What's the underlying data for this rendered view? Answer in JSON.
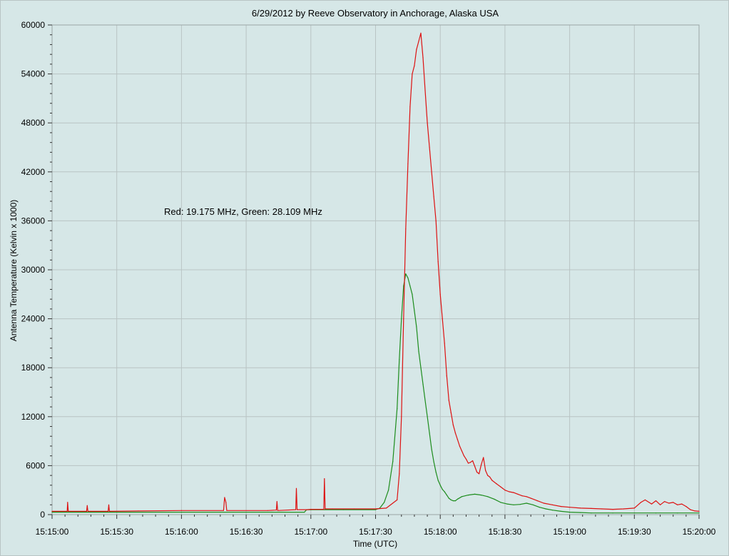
{
  "chart_data": {
    "type": "line",
    "title": "6/29/2012  by  Reeve Observatory  in  Anchorage, Alaska  USA",
    "xlabel": "Time (UTC)",
    "ylabel": "Antenna Temperature (Kelvin x 1000)",
    "annotation": "Red: 19.175 MHz, Green: 28.109 MHz",
    "xlim": [
      0,
      300
    ],
    "ylim": [
      0,
      60000
    ],
    "x_ticks": [
      {
        "t": 0,
        "label": "15:15:00"
      },
      {
        "t": 30,
        "label": "15:15:30"
      },
      {
        "t": 60,
        "label": "15:16:00"
      },
      {
        "t": 90,
        "label": "15:16:30"
      },
      {
        "t": 120,
        "label": "15:17:00"
      },
      {
        "t": 150,
        "label": "15:17:30"
      },
      {
        "t": 180,
        "label": "15:18:00"
      },
      {
        "t": 210,
        "label": "15:18:30"
      },
      {
        "t": 240,
        "label": "15:19:00"
      },
      {
        "t": 270,
        "label": "15:19:30"
      },
      {
        "t": 300,
        "label": "15:20:00"
      }
    ],
    "y_ticks": [
      0,
      6000,
      12000,
      18000,
      24000,
      30000,
      36000,
      42000,
      48000,
      54000,
      60000
    ],
    "grid": true,
    "colors": {
      "red": "#dd1111",
      "green": "#1c8c1c",
      "grid": "#b9c4c4",
      "plot_bg": "#d6e7e7"
    },
    "series": [
      {
        "name": "Red",
        "frequency": "19.175 MHz",
        "color": "#dd1111",
        "x": [
          0,
          7,
          7.2,
          7.5,
          16,
          16.3,
          16.6,
          26,
          26.3,
          26.6,
          40,
          60,
          79.5,
          80,
          80.6,
          81,
          100,
          104,
          104.3,
          104.6,
          113,
          113.3,
          113.6,
          118,
          120,
          126,
          126.3,
          126.6,
          130,
          140,
          150,
          155,
          160,
          161,
          162,
          163,
          164,
          165,
          166,
          167,
          168,
          169,
          170,
          171,
          172,
          173,
          174,
          175,
          176,
          177,
          178,
          179,
          180,
          181,
          182,
          183,
          184,
          185,
          186,
          187,
          188,
          189,
          190,
          191,
          192,
          193,
          194,
          195,
          196,
          197,
          198,
          199,
          200,
          201,
          202,
          203,
          204,
          205,
          206,
          207,
          208,
          209,
          210,
          212,
          214,
          216,
          218,
          220,
          222,
          225,
          228,
          232,
          236,
          240,
          245,
          250,
          255,
          260,
          265,
          270,
          273,
          275,
          278,
          280,
          282,
          284,
          286,
          288,
          290,
          292,
          294,
          296,
          298,
          300
        ],
        "y": [
          400,
          400,
          1500,
          400,
          400,
          1100,
          400,
          400,
          1200,
          400,
          450,
          500,
          500,
          2100,
          1500,
          500,
          500,
          550,
          1600,
          500,
          600,
          3200,
          600,
          600,
          650,
          650,
          4400,
          700,
          700,
          700,
          700,
          800,
          1800,
          5000,
          12000,
          24000,
          35000,
          43000,
          50000,
          54000,
          55000,
          57000,
          58000,
          59000,
          56000,
          52000,
          48000,
          45000,
          42000,
          39000,
          36000,
          31000,
          27000,
          24000,
          21000,
          17000,
          14000,
          12500,
          11000,
          10000,
          9200,
          8400,
          7800,
          7200,
          6800,
          6300,
          6400,
          6600,
          5900,
          5200,
          5000,
          6100,
          7000,
          5400,
          4800,
          4600,
          4200,
          4000,
          3800,
          3600,
          3400,
          3200,
          3000,
          2800,
          2700,
          2500,
          2300,
          2200,
          2000,
          1700,
          1400,
          1200,
          1000,
          900,
          800,
          750,
          700,
          650,
          700,
          800,
          1500,
          1800,
          1300,
          1700,
          1200,
          1600,
          1400,
          1500,
          1200,
          1300,
          1000,
          600,
          450,
          400
        ]
      },
      {
        "name": "Green",
        "frequency": "28.109 MHz",
        "color": "#1c8c1c",
        "x": [
          0,
          60,
          117,
          118,
          120,
          135,
          150,
          152,
          154,
          156,
          158,
          160,
          161,
          162,
          163,
          164,
          165,
          166,
          167,
          168,
          169,
          170,
          171,
          172,
          173,
          174,
          175,
          176,
          177,
          178,
          179,
          180,
          181,
          182,
          183,
          184,
          185,
          186,
          187,
          188,
          190,
          193,
          196,
          199,
          202,
          205,
          208,
          211,
          214,
          217,
          220,
          223,
          226,
          229,
          232,
          236,
          240,
          245,
          250,
          260,
          270,
          280,
          290,
          300
        ],
        "y": [
          300,
          300,
          300,
          600,
          600,
          600,
          600,
          800,
          1500,
          3000,
          6500,
          13000,
          19000,
          24000,
          28000,
          29500,
          29000,
          28000,
          27000,
          25000,
          23000,
          20000,
          18000,
          16000,
          14000,
          12000,
          10000,
          8000,
          6500,
          5200,
          4200,
          3600,
          3100,
          2800,
          2400,
          2000,
          1800,
          1700,
          1700,
          1900,
          2200,
          2400,
          2500,
          2400,
          2200,
          1900,
          1500,
          1300,
          1200,
          1250,
          1400,
          1200,
          900,
          700,
          550,
          400,
          300,
          250,
          200,
          200,
          200,
          200,
          200,
          200
        ]
      }
    ]
  }
}
